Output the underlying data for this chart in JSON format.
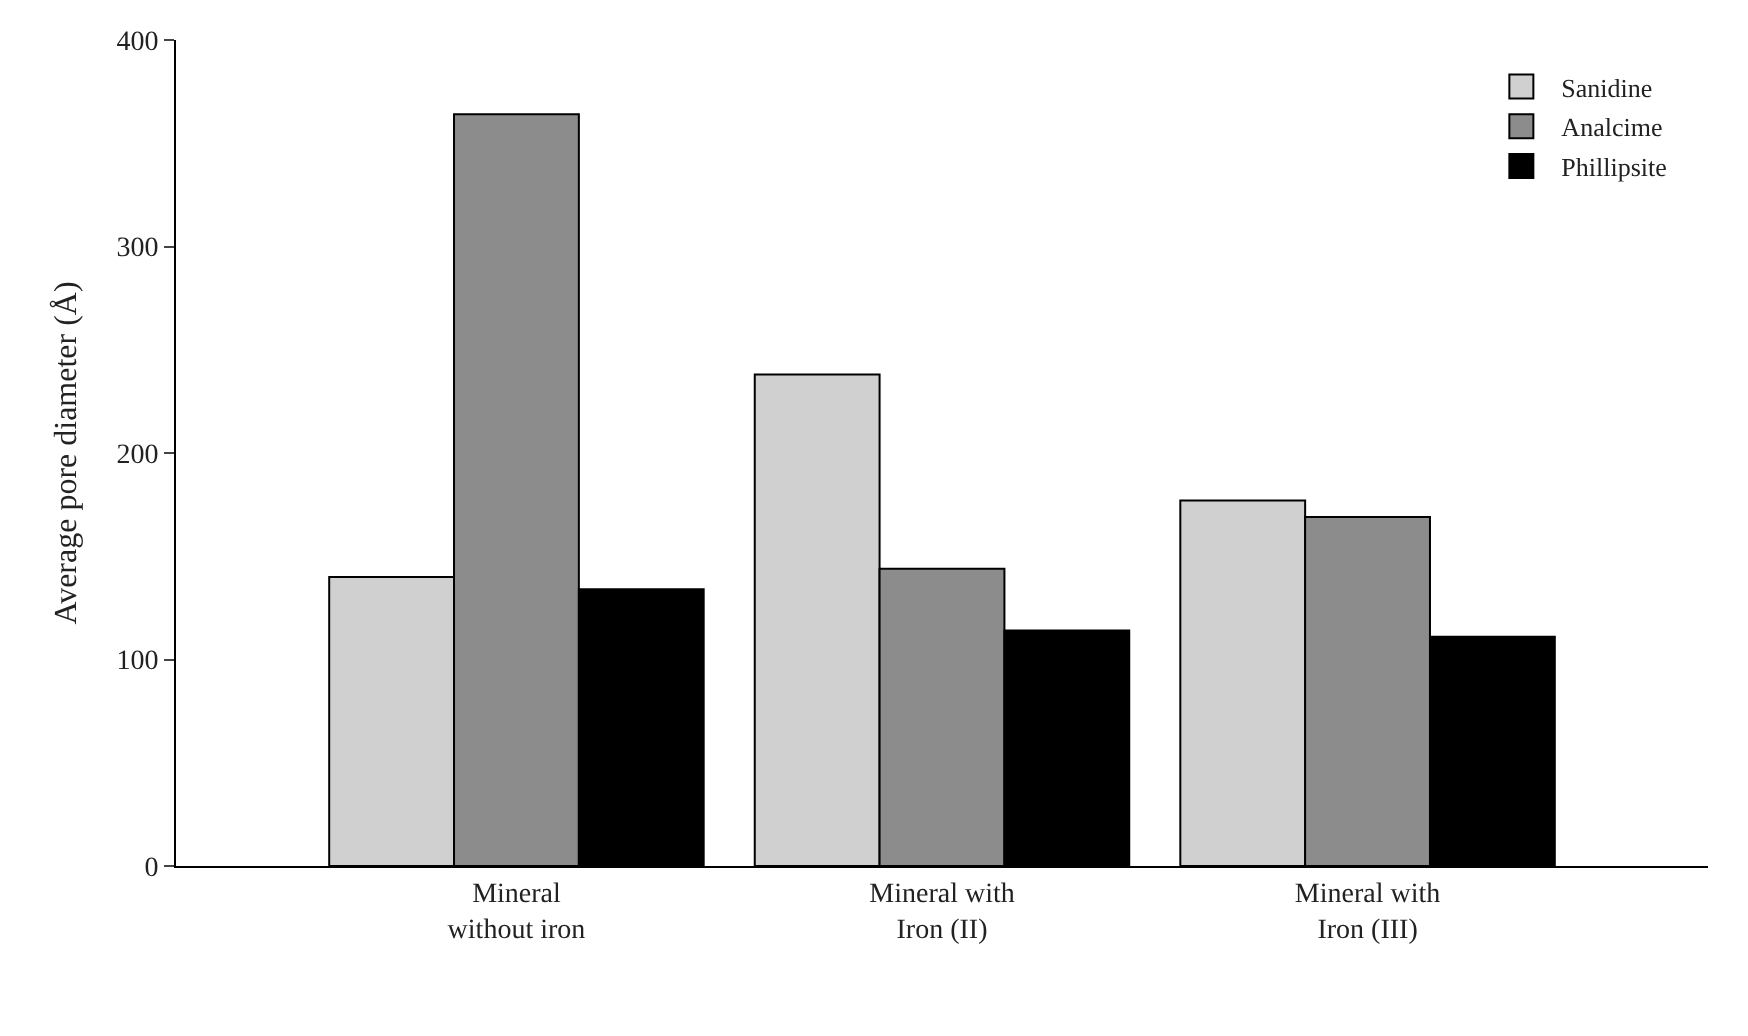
{
  "chart_data": {
    "type": "bar",
    "ylabel": "Average pore diameter (Å)",
    "categories": [
      "Mineral\nwithout iron",
      "Mineral with\nIron (II)",
      "Mineral with\nIron (III)"
    ],
    "series": [
      {
        "name": "Sanidine",
        "color": "#d0d0d0",
        "values": [
          140,
          238,
          177
        ]
      },
      {
        "name": "Analcime",
        "color": "#8c8c8c",
        "values": [
          364,
          144,
          169
        ]
      },
      {
        "name": "Phillipsite",
        "color": "#000000",
        "values": [
          134,
          114,
          111
        ]
      }
    ],
    "ylim": [
      0,
      400
    ],
    "yticks": [
      0,
      100,
      200,
      300,
      400
    ],
    "legend": "top right"
  }
}
